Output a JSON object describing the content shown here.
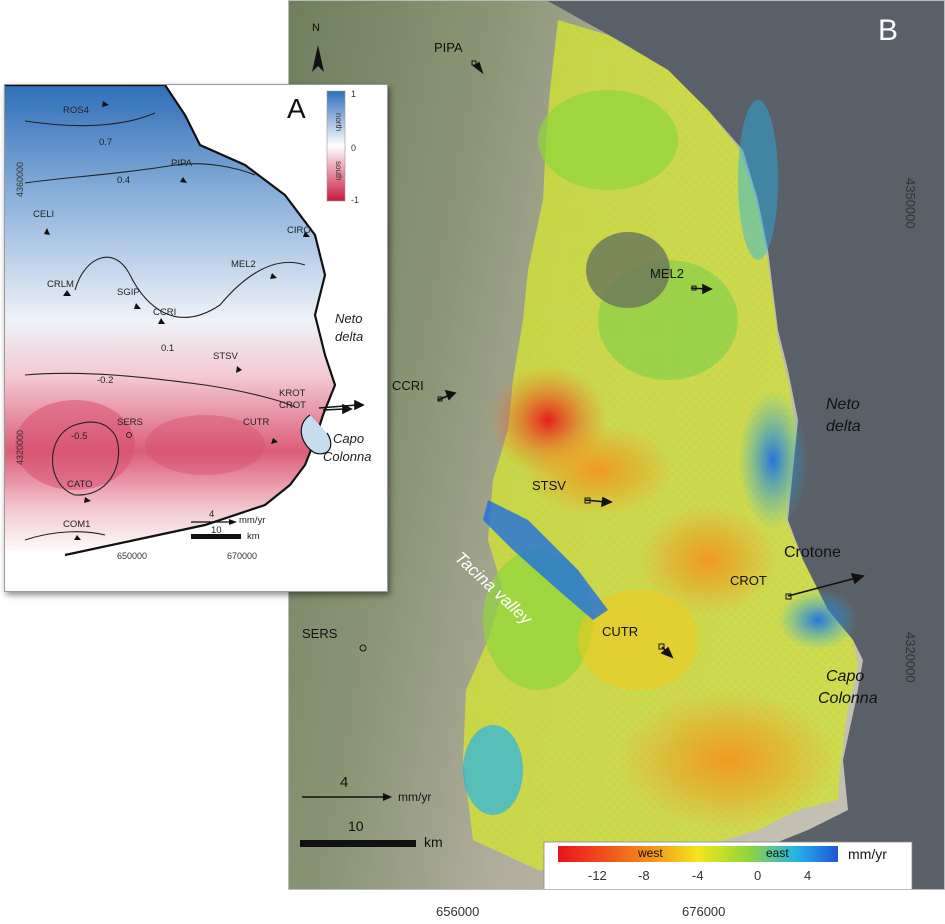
{
  "panel_b": {
    "letter": "B",
    "north": "N",
    "stations": {
      "pipa": "PIPA",
      "mel2": "MEL2",
      "ccri": "CCRI",
      "stsv": "STSV",
      "crot": "CROT",
      "cutr": "CUTR",
      "sers": "SERS"
    },
    "places": {
      "crotone": "Crotone",
      "neto_1": "Neto",
      "neto_2": "delta",
      "capo_1": "Capo",
      "capo_2": "Colonna",
      "tacina": "Tacina valley"
    },
    "scale": {
      "vector_value": "4",
      "vector_unit": "mm/yr",
      "bar_value": "10",
      "bar_unit": "km"
    },
    "legend": {
      "west": "west",
      "east": "east",
      "unit": "mm/yr",
      "ticks": [
        "-12",
        "-8",
        "-4",
        "0",
        "4"
      ],
      "colors": [
        "#e8141c",
        "#f47a1d",
        "#f3e51c",
        "#8fd63b",
        "#26b3e8",
        "#1e56d6"
      ]
    },
    "x_ticks": [
      "656000",
      "676000"
    ],
    "y_ticks": [
      "4350000",
      "4320000"
    ]
  },
  "panel_a": {
    "letter": "A",
    "stations": {
      "ros4": "ROS4",
      "pipa": "PIPA",
      "celi": "CELI",
      "ciro": "CIRO",
      "crlm": "CRLM",
      "sgip": "SGIP",
      "ccri": "CCRI",
      "mel2": "MEL2",
      "stsv": "STSV",
      "krot": "KROT",
      "crot": "CROT",
      "sers": "SERS",
      "cutr": "CUTR",
      "cato": "CATO",
      "com1": "COM1"
    },
    "contours": {
      "c07": "0.7",
      "c04": "0.4",
      "c01": "0.1",
      "cm02": "-0.2",
      "cm05": "-0.5"
    },
    "places": {
      "neto_1": "Neto",
      "neto_2": "delta",
      "capo_1": "Capo",
      "capo_2": "Colonna"
    },
    "legend": {
      "max": "1",
      "mid": "0",
      "min": "-1",
      "north": "north",
      "south": "south",
      "colors": [
        "#2f6fb8",
        "#ffffff",
        "#c8193c"
      ]
    },
    "scale": {
      "vector_value": "4",
      "vector_unit": "mm/yr",
      "bar_value": "10",
      "bar_unit": "km"
    },
    "x_ticks": [
      "650000",
      "670000"
    ],
    "y_ticks": [
      "4360000",
      "4320000"
    ]
  }
}
